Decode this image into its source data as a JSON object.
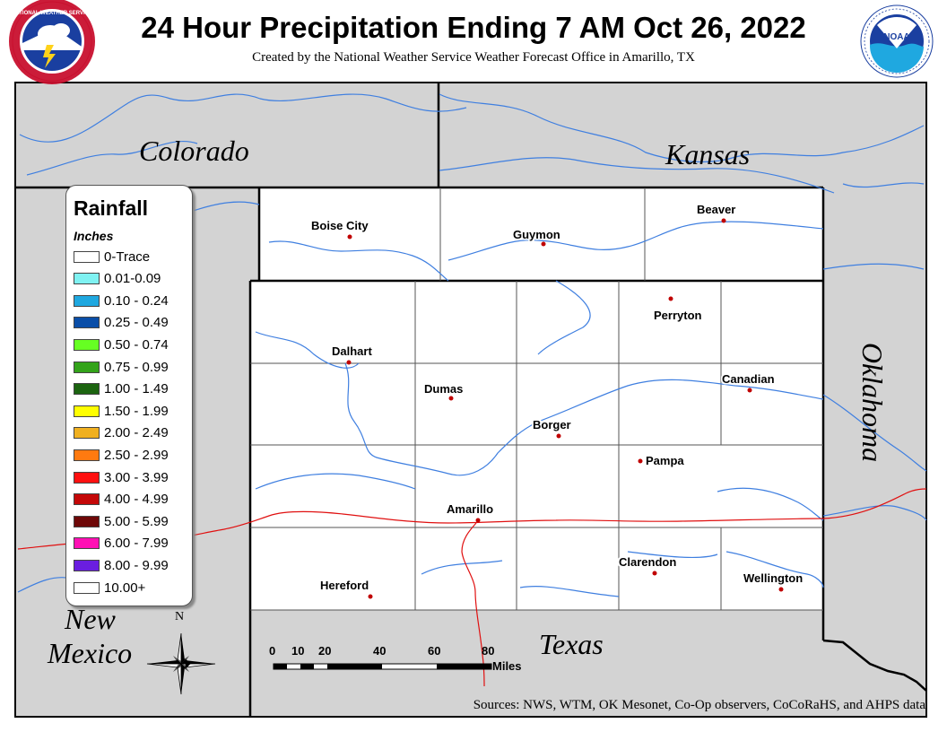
{
  "header": {
    "title": "24 Hour Precipitation Ending 7 AM Oct 26, 2022",
    "subtitle": "Created by the National Weather Service Weather Forecast Office in Amarillo, TX"
  },
  "logos": {
    "left": "National Weather Service",
    "right": "NOAA"
  },
  "states": {
    "colorado": "Colorado",
    "kansas": "Kansas",
    "oklahoma": "Oklahoma",
    "new_mexico_1": "New",
    "new_mexico_2": "Mexico",
    "texas": "Texas"
  },
  "cities": {
    "boise_city": "Boise City",
    "guymon": "Guymon",
    "beaver": "Beaver",
    "perryton": "Perryton",
    "dalhart": "Dalhart",
    "dumas": "Dumas",
    "canadian": "Canadian",
    "borger": "Borger",
    "pampa": "Pampa",
    "amarillo": "Amarillo",
    "clarendon": "Clarendon",
    "hereford": "Hereford",
    "wellington": "Wellington"
  },
  "legend": {
    "title": "Rainfall",
    "units": "Inches",
    "items": [
      {
        "label": "0-Trace",
        "color": "#ffffff"
      },
      {
        "label": "0.01-0.09",
        "color": "#7ff2f2"
      },
      {
        "label": "0.10 - 0.24",
        "color": "#1fa8e0"
      },
      {
        "label": "0.25 - 0.49",
        "color": "#0a4ea8"
      },
      {
        "label": "0.50 - 0.74",
        "color": "#66ff22"
      },
      {
        "label": "0.75 - 0.99",
        "color": "#33a31a"
      },
      {
        "label": "1.00 - 1.49",
        "color": "#1c6410"
      },
      {
        "label": "1.50 - 1.99",
        "color": "#ffff00"
      },
      {
        "label": "2.00 - 2.49",
        "color": "#f0b020"
      },
      {
        "label": "2.50 - 2.99",
        "color": "#ff7a10"
      },
      {
        "label": "3.00 - 3.99",
        "color": "#ff1010"
      },
      {
        "label": "4.00 - 4.99",
        "color": "#c40808"
      },
      {
        "label": "5.00 - 5.99",
        "color": "#6e0808"
      },
      {
        "label": "6.00 - 7.99",
        "color": "#ff10b4"
      },
      {
        "label": "8.00 - 9.99",
        "color": "#6a1ee0"
      },
      {
        "label": "10.00+",
        "color": "#ffffff"
      }
    ]
  },
  "compass": {
    "north": "N"
  },
  "scale": {
    "ticks": [
      "0",
      "10",
      "20",
      "40",
      "60",
      "80"
    ],
    "unit": "Miles"
  },
  "sources": "Sources:  NWS, WTM, OK Mesonet, Co-Op observers, CoCoRaHS, and AHPS data",
  "colors": {
    "outside_area": "#d3d3d3",
    "forecast_area": "#ffffff",
    "rivers": "#3f7fe0",
    "highway": "#e01010"
  }
}
